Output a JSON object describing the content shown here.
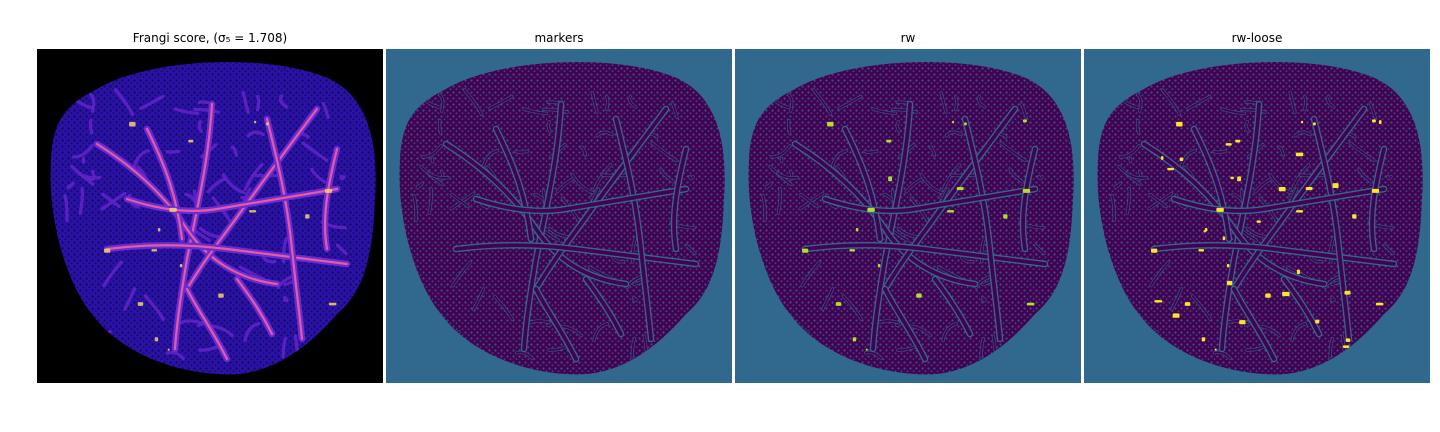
{
  "panels": [
    {
      "id": "frangi",
      "title": "Frangi score, (σ₅ = 1.708)",
      "background": "#000000",
      "fill": "#2a11a8",
      "vessel_bright": "#e85aa0",
      "vessel_hot": "#f6d36a"
    },
    {
      "id": "markers",
      "title": "markers",
      "background": "#31688e",
      "fill": "#440154",
      "vessel_bright": "#31688e",
      "vessel_hot": "#31688e"
    },
    {
      "id": "rw",
      "title": "rw",
      "background": "#31688e",
      "fill": "#440154",
      "vessel_bright": "#31688e",
      "vessel_hot": "#b5de2b"
    },
    {
      "id": "rw-loose",
      "title": "rw-loose",
      "background": "#31688e",
      "fill": "#440154",
      "vessel_bright": "#31688e",
      "vessel_hot": "#fde725"
    }
  ]
}
